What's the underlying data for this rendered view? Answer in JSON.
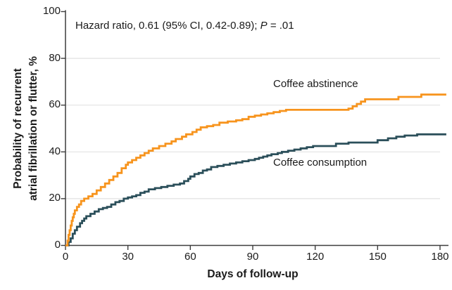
{
  "figure": {
    "annotation": {
      "prefix": "Hazard ratio, 0.61 (95% CI, 0.42-0.89); ",
      "p_label": "P",
      "p_suffix": " = .01"
    },
    "y_axis": {
      "title_line1": "Probability of recurrent",
      "title_line2": "atrial fibrillation or flutter, %"
    },
    "x_axis": {
      "title": "Days of follow-up"
    }
  },
  "chart_data": {
    "type": "line",
    "subtype": "kaplan-meier-step",
    "title": "",
    "xlabel": "Days of follow-up",
    "ylabel": "Probability of recurrent atrial fibrillation or flutter, %",
    "xlim": [
      0,
      180
    ],
    "ylim": [
      0,
      100
    ],
    "x_ticks": [
      0,
      30,
      60,
      90,
      120,
      150,
      180
    ],
    "y_ticks": [
      0,
      20,
      40,
      60,
      80,
      100
    ],
    "grid": "horizontal-light",
    "legend_position": "inline-labels",
    "annotation": "Hazard ratio, 0.61 (95% CI, 0.42-0.89); P = .01",
    "curve_end_day": 183,
    "series": [
      {
        "name": "Coffee abstinence",
        "color": "#F7941D",
        "points": [
          [
            0,
            0
          ],
          [
            1,
            2
          ],
          [
            1.5,
            4.5
          ],
          [
            2,
            6.5
          ],
          [
            2.5,
            8.5
          ],
          [
            3,
            10.5
          ],
          [
            3.5,
            12
          ],
          [
            4,
            13.5
          ],
          [
            4.5,
            15
          ],
          [
            5.5,
            16.5
          ],
          [
            6.5,
            17.5
          ],
          [
            7.5,
            19
          ],
          [
            9,
            20
          ],
          [
            11,
            21
          ],
          [
            13,
            22
          ],
          [
            15,
            23.5
          ],
          [
            17,
            25
          ],
          [
            19,
            26.5
          ],
          [
            21,
            28
          ],
          [
            23,
            29.5
          ],
          [
            25,
            31
          ],
          [
            27,
            33
          ],
          [
            29,
            34.5
          ],
          [
            30,
            35.5
          ],
          [
            32,
            36.5
          ],
          [
            34,
            37.5
          ],
          [
            36,
            38.5
          ],
          [
            38,
            39.5
          ],
          [
            40,
            40.5
          ],
          [
            42,
            41.5
          ],
          [
            45,
            42.5
          ],
          [
            48,
            43.5
          ],
          [
            51,
            44.5
          ],
          [
            53,
            45.5
          ],
          [
            56,
            46.5
          ],
          [
            58,
            47.5
          ],
          [
            61,
            48.5
          ],
          [
            63,
            49.5
          ],
          [
            65,
            50.5
          ],
          [
            68,
            51
          ],
          [
            71,
            51.5
          ],
          [
            74,
            52.5
          ],
          [
            78,
            53
          ],
          [
            82,
            53.5
          ],
          [
            85,
            54
          ],
          [
            88,
            55
          ],
          [
            91,
            55.5
          ],
          [
            94,
            56
          ],
          [
            97,
            56.5
          ],
          [
            100,
            57
          ],
          [
            103,
            57.5
          ],
          [
            106,
            58
          ],
          [
            136,
            58.5
          ],
          [
            138,
            59.5
          ],
          [
            140,
            60.5
          ],
          [
            142,
            61.5
          ],
          [
            144,
            62.5
          ],
          [
            160,
            63.5
          ],
          [
            171,
            64.5
          ],
          [
            183,
            64.5
          ]
        ]
      },
      {
        "name": "Coffee consumption",
        "color": "#2B4F5A",
        "points": [
          [
            0,
            0
          ],
          [
            1.5,
            1.5
          ],
          [
            2.5,
            3
          ],
          [
            3.5,
            5
          ],
          [
            4.5,
            6.5
          ],
          [
            5.5,
            8
          ],
          [
            7,
            9.5
          ],
          [
            8,
            10.5
          ],
          [
            9,
            11.5
          ],
          [
            10,
            12.5
          ],
          [
            12,
            13.5
          ],
          [
            14,
            14.5
          ],
          [
            16,
            15.5
          ],
          [
            18,
            16
          ],
          [
            20,
            16.5
          ],
          [
            22,
            17.5
          ],
          [
            24,
            18.5
          ],
          [
            26,
            19
          ],
          [
            28,
            20
          ],
          [
            30,
            20.5
          ],
          [
            32,
            21
          ],
          [
            34,
            21.5
          ],
          [
            36,
            22.5
          ],
          [
            38,
            23
          ],
          [
            40,
            24
          ],
          [
            43,
            24.5
          ],
          [
            46,
            25
          ],
          [
            49,
            25.5
          ],
          [
            52,
            26
          ],
          [
            55,
            26.5
          ],
          [
            57,
            27.5
          ],
          [
            59,
            28.5
          ],
          [
            60,
            29.5
          ],
          [
            62,
            30.5
          ],
          [
            64,
            31
          ],
          [
            66,
            32
          ],
          [
            68,
            32.5
          ],
          [
            70,
            33.5
          ],
          [
            73,
            34
          ],
          [
            76,
            34.5
          ],
          [
            79,
            35
          ],
          [
            82,
            35.5
          ],
          [
            85,
            36
          ],
          [
            88,
            36.5
          ],
          [
            91,
            37
          ],
          [
            93,
            37.5
          ],
          [
            95,
            38
          ],
          [
            97,
            38.5
          ],
          [
            99,
            39
          ],
          [
            102,
            39.5
          ],
          [
            104,
            40
          ],
          [
            107,
            40.5
          ],
          [
            110,
            41
          ],
          [
            113,
            41.5
          ],
          [
            116,
            42
          ],
          [
            119,
            42.5
          ],
          [
            130,
            43.5
          ],
          [
            136,
            44
          ],
          [
            150,
            45
          ],
          [
            155,
            45.8
          ],
          [
            159,
            46.5
          ],
          [
            163,
            47
          ],
          [
            169,
            47.5
          ],
          [
            183,
            47.5
          ]
        ]
      }
    ],
    "style_colors": {
      "axis": "#3d3d3d",
      "gridline": "#e2e2e2",
      "text": "#1a1a1a",
      "abstinence_orange": "#F7941D",
      "consumption_teal": "#2B4F5A"
    }
  }
}
